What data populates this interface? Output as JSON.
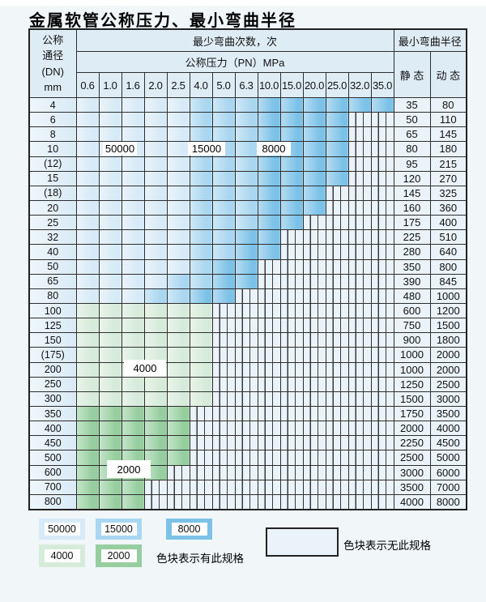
{
  "title": "金属软管公称压力、最小弯曲半径",
  "colors": {
    "blue_50000": "#d7eaf7",
    "blue_15000": "#a9d6f0",
    "blue_8000": "#7cc2e8",
    "green_4000": "#d6ebd9",
    "green_2000": "#96ce9f",
    "no_spec_bg": "#eaf2fa",
    "header_bg": "#deecf6",
    "dn_col_bg": "#d9eaf6",
    "radius_col_bg": "#eaf3fa",
    "grid_line": "#2e2e2e"
  },
  "header": {
    "dn_lines": [
      "公称",
      "通径",
      "(DN)",
      "mm"
    ],
    "bend_cycles": "最少弯曲次数，次",
    "pressure": "公称压力（PN）MPa",
    "radius": "最小弯曲半径",
    "static": "静 态",
    "dynamic": "动 态",
    "pressures": [
      "0.6",
      "1.0",
      "1.6",
      "2.0",
      "2.5",
      "4.0",
      "5.0",
      "6.3",
      "10.0",
      "15.0",
      "20.0",
      "25.0",
      "32.0",
      "35.0"
    ]
  },
  "band_legend_key": "A=50000次 B=15000次 C=8000次 G=4000次 E=2000次 X=无此规格",
  "rows": [
    {
      "dn": "4",
      "cells": "AAAAABBBCCCCCC",
      "static": "35",
      "dynamic": "80"
    },
    {
      "dn": "6",
      "cells": "AAAAABBBCCCCXX",
      "static": "50",
      "dynamic": "110"
    },
    {
      "dn": "8",
      "cells": "AAAAABBBCCCCXX",
      "static": "65",
      "dynamic": "145"
    },
    {
      "dn": "10",
      "cells": "AAAAABBBCCCCXX",
      "static": "80",
      "dynamic": "180"
    },
    {
      "dn": "(12)",
      "cells": "AAAAABBBCCCCXX",
      "static": "95",
      "dynamic": "215"
    },
    {
      "dn": "15",
      "cells": "AAAAABBBCCCCXX",
      "static": "120",
      "dynamic": "270"
    },
    {
      "dn": "(18)",
      "cells": "AAAAABBBCCCXXX",
      "static": "145",
      "dynamic": "325"
    },
    {
      "dn": "20",
      "cells": "AAAAABBBCCCXXX",
      "static": "160",
      "dynamic": "360"
    },
    {
      "dn": "25",
      "cells": "AAAAABBBCCXXXX",
      "static": "175",
      "dynamic": "400"
    },
    {
      "dn": "32",
      "cells": "AAAAABBCCXXXXX",
      "static": "225",
      "dynamic": "510"
    },
    {
      "dn": "40",
      "cells": "AAAAABBCCXXXXX",
      "static": "280",
      "dynamic": "640"
    },
    {
      "dn": "50",
      "cells": "AAAAABCCXXXXXX",
      "static": "350",
      "dynamic": "800"
    },
    {
      "dn": "65",
      "cells": "AAAABBCCXXXXXX",
      "static": "390",
      "dynamic": "845"
    },
    {
      "dn": "80",
      "cells": "AAABBCCXXXXXXX",
      "static": "480",
      "dynamic": "1000"
    },
    {
      "dn": "100",
      "cells": "GGGGGGXXXXXXXX",
      "static": "600",
      "dynamic": "1200"
    },
    {
      "dn": "125",
      "cells": "GGGGGGXXXXXXXX",
      "static": "750",
      "dynamic": "1500"
    },
    {
      "dn": "150",
      "cells": "GGGGGGXXXXXXXX",
      "static": "900",
      "dynamic": "1800"
    },
    {
      "dn": "(175)",
      "cells": "GGGGGGXXXXXXXX",
      "static": "1000",
      "dynamic": "2000"
    },
    {
      "dn": "200",
      "cells": "GGGGGGXXXXXXXX",
      "static": "1000",
      "dynamic": "2000"
    },
    {
      "dn": "250",
      "cells": "GGGGGGXXXXXXXX",
      "static": "1250",
      "dynamic": "2500"
    },
    {
      "dn": "300",
      "cells": "GGGGGGXXXXXXXX",
      "static": "1500",
      "dynamic": "3000"
    },
    {
      "dn": "350",
      "cells": "EEEEEXXXXXXXXX",
      "static": "1750",
      "dynamic": "3500"
    },
    {
      "dn": "400",
      "cells": "EEEEEXXXXXXXXX",
      "static": "2000",
      "dynamic": "4000"
    },
    {
      "dn": "450",
      "cells": "EEEEEXXXXXXXXX",
      "static": "2250",
      "dynamic": "4500"
    },
    {
      "dn": "500",
      "cells": "EEEEEXXXXXXXXX",
      "static": "2500",
      "dynamic": "5000"
    },
    {
      "dn": "600",
      "cells": "EEEEXXXXXXXXXX",
      "static": "3000",
      "dynamic": "6000"
    },
    {
      "dn": "700",
      "cells": "EEEXXXXXXXXXXX",
      "static": "3500",
      "dynamic": "7000"
    },
    {
      "dn": "800",
      "cells": "EEEXXXXXXXXXXX",
      "static": "4000",
      "dynamic": "8000"
    }
  ],
  "overlays": {
    "b50000": "50000",
    "b15000": "15000",
    "b8000": "8000",
    "g4000": "4000",
    "g2000": "2000"
  },
  "legend": {
    "items": [
      {
        "label": "50000"
      },
      {
        "label": "15000"
      },
      {
        "label": "8000"
      },
      {
        "label": "4000"
      },
      {
        "label": "2000"
      }
    ],
    "has_spec": "色块表示有此规格",
    "no_spec": "色块表示无此规格"
  }
}
